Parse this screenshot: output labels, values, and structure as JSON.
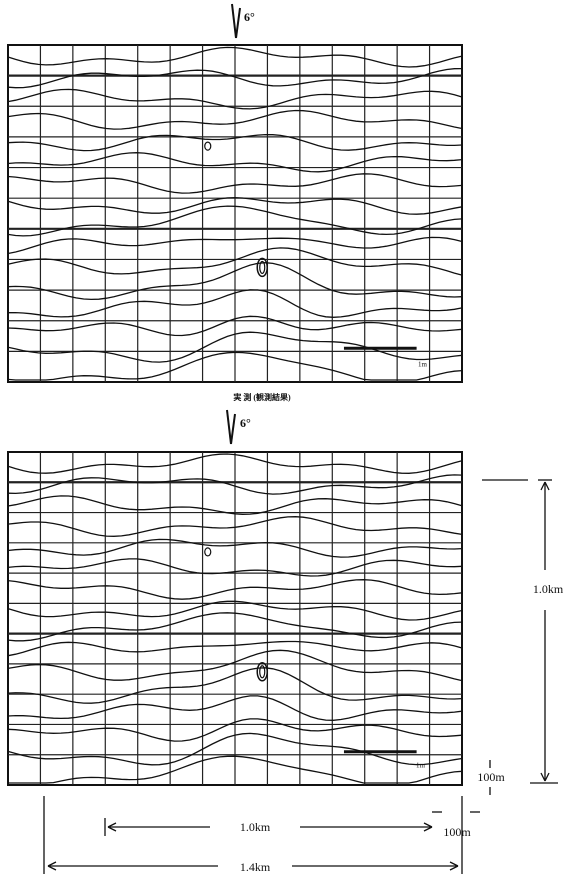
{
  "top": {
    "angle": "6°",
    "caption": "実 測 (観測結果)",
    "marker": "1m"
  },
  "bottom": {
    "angle": "6°",
    "marker": "1m"
  },
  "dimensions": {
    "height": "1.0km",
    "row": "100m",
    "width_inner": "1.0km",
    "column": "100m",
    "width_total": "1.4km"
  }
}
